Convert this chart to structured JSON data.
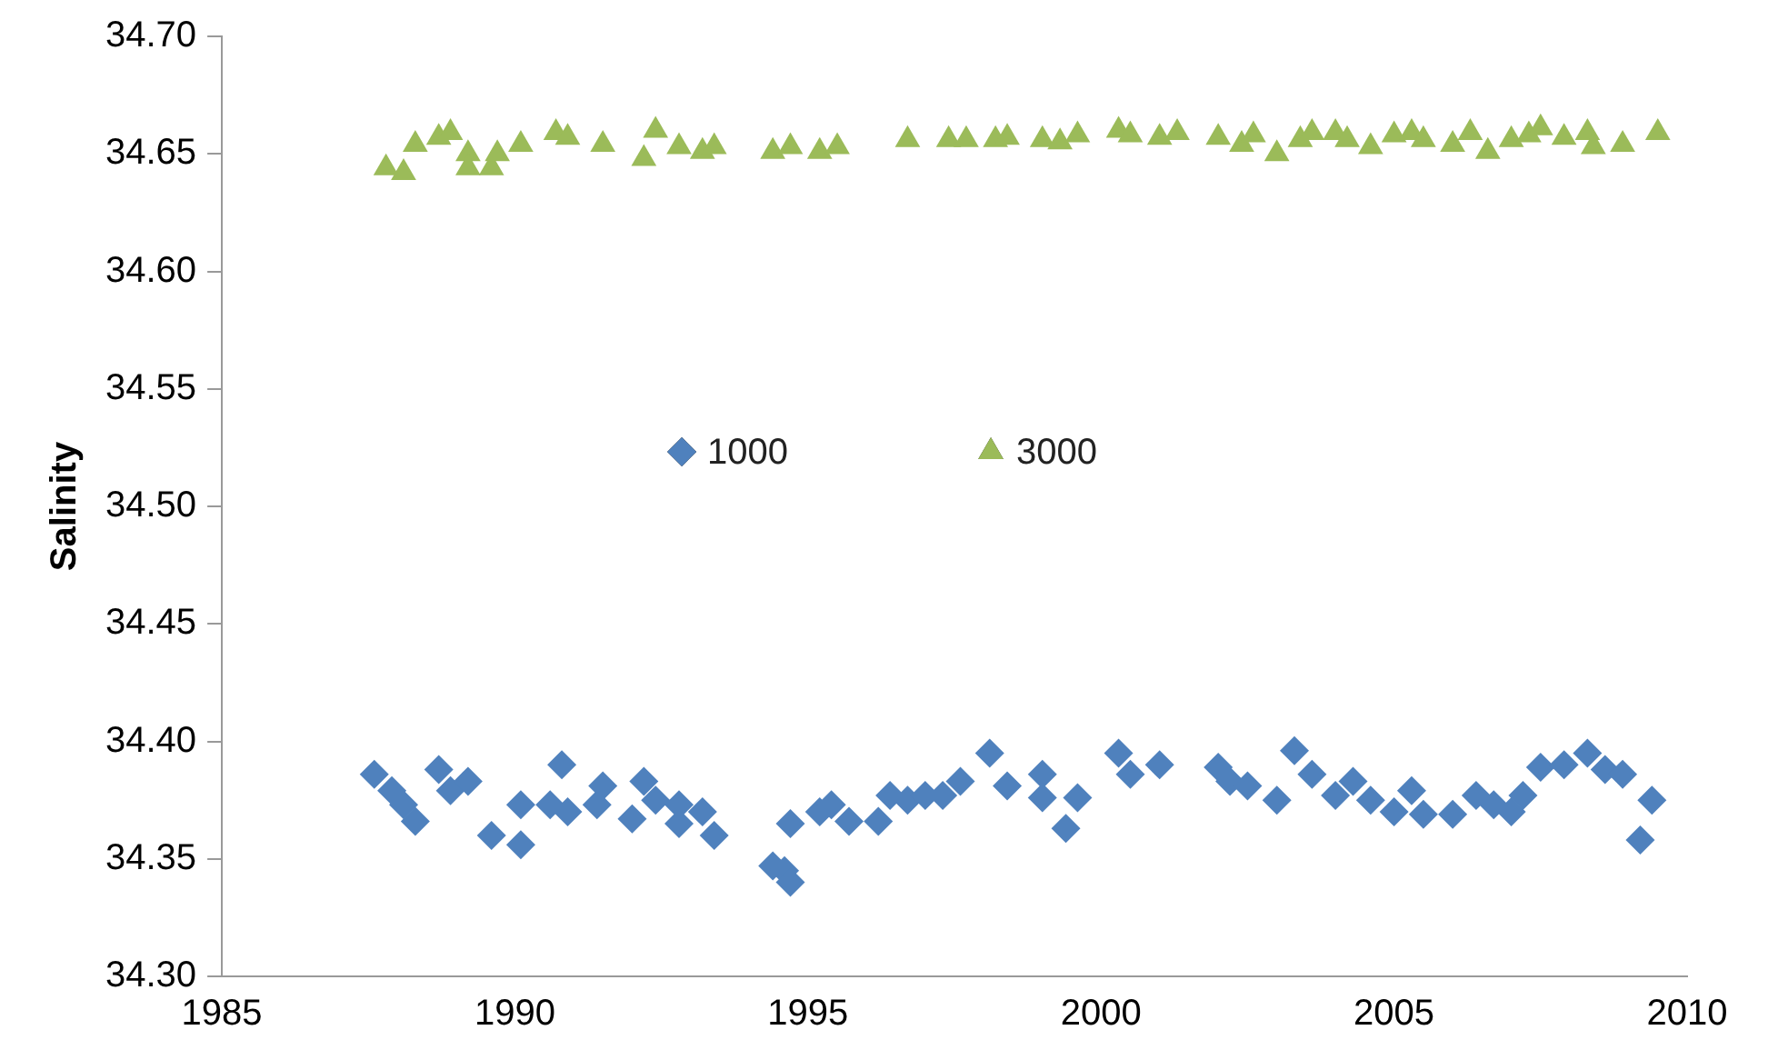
{
  "chart_data": {
    "type": "scatter",
    "ylabel": "Salinity",
    "xlim": [
      1985,
      2010
    ],
    "xticks": [
      1985,
      1990,
      1995,
      2000,
      2005,
      2010
    ],
    "ylim": [
      34.3,
      34.7
    ],
    "yticks": [
      {
        "value": 34.3,
        "label": "34.30"
      },
      {
        "value": 34.35,
        "label": "34.35"
      },
      {
        "value": 34.4,
        "label": "34.40"
      },
      {
        "value": 34.45,
        "label": "34.45"
      },
      {
        "value": 34.5,
        "label": "34.50"
      },
      {
        "value": 34.55,
        "label": "34.55"
      },
      {
        "value": 34.6,
        "label": "34.60"
      },
      {
        "value": 34.65,
        "label": "34.65"
      },
      {
        "value": 34.7,
        "label": "34.70"
      }
    ],
    "grid": false,
    "legend": "center",
    "series": [
      {
        "name": "1000",
        "color": "#4f81bd",
        "marker": "diamond",
        "x": [
          1987.6,
          1987.9,
          1988.1,
          1988.3,
          1988.7,
          1988.9,
          1989.2,
          1989.6,
          1990.1,
          1990.1,
          1990.6,
          1990.8,
          1990.9,
          1991.4,
          1991.5,
          1992.0,
          1992.2,
          1992.4,
          1992.8,
          1992.8,
          1993.2,
          1993.4,
          1994.4,
          1994.6,
          1994.7,
          1994.7,
          1995.2,
          1995.4,
          1995.7,
          1996.2,
          1996.4,
          1996.7,
          1997.0,
          1997.3,
          1997.6,
          1998.1,
          1998.4,
          1999.0,
          1999.0,
          1999.4,
          1999.6,
          2000.3,
          2000.5,
          2001.0,
          2002.0,
          2002.2,
          2002.5,
          2003.0,
          2003.3,
          2003.6,
          2004.0,
          2004.3,
          2004.6,
          2005.0,
          2005.3,
          2005.5,
          2006.0,
          2006.4,
          2006.7,
          2007.0,
          2007.2,
          2007.5,
          2007.9,
          2008.3,
          2008.6,
          2008.9,
          2009.2,
          2009.4
        ],
        "values": [
          34.386,
          34.379,
          34.373,
          34.366,
          34.388,
          34.379,
          34.383,
          34.36,
          34.356,
          34.373,
          34.373,
          34.39,
          34.37,
          34.373,
          34.381,
          34.367,
          34.383,
          34.375,
          34.365,
          34.373,
          34.37,
          34.36,
          34.347,
          34.345,
          34.34,
          34.365,
          34.37,
          34.373,
          34.366,
          34.366,
          34.377,
          34.375,
          34.377,
          34.377,
          34.383,
          34.395,
          34.381,
          34.386,
          34.376,
          34.363,
          34.376,
          34.395,
          34.386,
          34.39,
          34.389,
          34.383,
          34.381,
          34.375,
          34.396,
          34.386,
          34.377,
          34.383,
          34.375,
          34.37,
          34.379,
          34.369,
          34.369,
          34.377,
          34.373,
          34.37,
          34.377,
          34.389,
          34.39,
          34.395,
          34.388,
          34.386,
          34.358,
          34.375
        ]
      },
      {
        "name": "3000",
        "color": "#9bbb59",
        "marker": "triangle",
        "x": [
          1987.8,
          1988.1,
          1988.3,
          1988.7,
          1988.9,
          1989.2,
          1989.2,
          1989.6,
          1989.7,
          1990.1,
          1990.7,
          1990.9,
          1991.5,
          1992.2,
          1992.4,
          1992.8,
          1993.2,
          1993.4,
          1994.4,
          1994.7,
          1995.2,
          1995.5,
          1996.7,
          1997.4,
          1997.7,
          1998.2,
          1998.4,
          1999.0,
          1999.3,
          1999.6,
          2000.3,
          2000.5,
          2001.0,
          2001.3,
          2002.0,
          2002.4,
          2002.6,
          2003.0,
          2003.4,
          2003.6,
          2004.0,
          2004.2,
          2004.6,
          2005.0,
          2005.3,
          2005.5,
          2006.0,
          2006.3,
          2006.6,
          2007.0,
          2007.3,
          2007.5,
          2007.9,
          2008.3,
          2008.4,
          2008.9,
          2009.5
        ],
        "values": [
          34.644,
          34.642,
          34.654,
          34.657,
          34.659,
          34.65,
          34.644,
          34.644,
          34.65,
          34.654,
          34.659,
          34.657,
          34.654,
          34.648,
          34.66,
          34.653,
          34.651,
          34.653,
          34.651,
          34.653,
          34.651,
          34.653,
          34.656,
          34.656,
          34.656,
          34.656,
          34.657,
          34.656,
          34.655,
          34.658,
          34.66,
          34.658,
          34.657,
          34.659,
          34.657,
          34.654,
          34.658,
          34.65,
          34.656,
          34.659,
          34.659,
          34.656,
          34.653,
          34.658,
          34.659,
          34.656,
          34.654,
          34.659,
          34.651,
          34.656,
          34.658,
          34.661,
          34.657,
          34.659,
          34.653,
          34.654,
          34.659
        ]
      }
    ]
  }
}
